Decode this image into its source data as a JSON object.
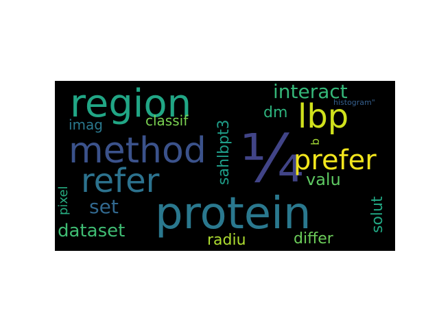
{
  "words": [
    {
      "key": "frac",
      "text": "¼",
      "color": "#414487"
    },
    {
      "key": "protein",
      "text": "protein",
      "color": "#2a788e"
    },
    {
      "key": "method",
      "text": "method",
      "color": "#3b528b"
    },
    {
      "key": "region",
      "text": "region",
      "color": "#21a685"
    },
    {
      "key": "refer",
      "text": "refer",
      "color": "#2c728e"
    },
    {
      "key": "lbp",
      "text": "lbp",
      "color": "#d0e11c"
    },
    {
      "key": "prefer",
      "text": "prefer",
      "color": "#f1e51d"
    },
    {
      "key": "interact",
      "text": "interact",
      "color": "#35b779"
    },
    {
      "key": "set",
      "text": "set",
      "color": "#31688e"
    },
    {
      "key": "dataset",
      "text": "dataset",
      "color": "#3fbc73"
    },
    {
      "key": "dm",
      "text": "dm",
      "color": "#2db27d"
    },
    {
      "key": "valu",
      "text": "valu",
      "color": "#5ec962"
    },
    {
      "key": "classif",
      "text": "classif",
      "color": "#7ad151"
    },
    {
      "key": "imag",
      "text": "imag",
      "color": "#2a788e"
    },
    {
      "key": "radiu",
      "text": "radiu",
      "color": "#addc30"
    },
    {
      "key": "differ",
      "text": "differ",
      "color": "#6ccd5a"
    },
    {
      "key": "sahlbpt3",
      "text": "sahlbpt3",
      "color": "#1f9e89"
    },
    {
      "key": "solut",
      "text": "solut",
      "color": "#22a884"
    },
    {
      "key": "pixel",
      "text": "pixel",
      "color": "#27ad81"
    },
    {
      "key": "histogram",
      "text": "histogram\"",
      "color": "#355f8d"
    },
    {
      "key": "b",
      "text": "b",
      "color": "#a5db36"
    }
  ]
}
